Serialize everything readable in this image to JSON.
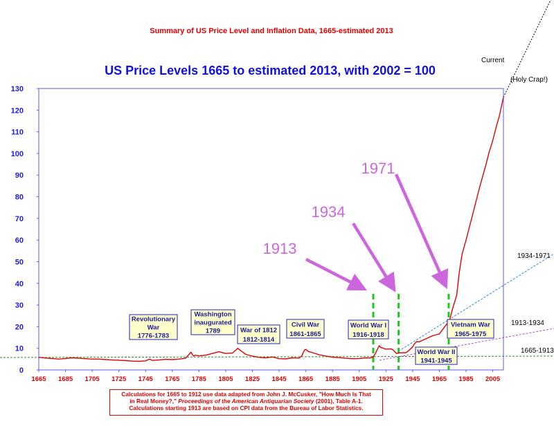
{
  "subtitle": "Summary of US Price Level and Inflation Data, 1665-estimated 2013",
  "credit": {
    "line1": "Calculations for 1665 to 1912 use data adapted from John J. McCusker, \"How Much Is That",
    "line2_pre": "in Real Money?,\" ",
    "line2_italic": "Proceedings of the American Antiquarian Society",
    "line2_post": " (2001), Table A-1.",
    "line3": "Calculations starting 1913 are based on CPI data from the Bureau of Labor Statistics."
  },
  "chart_data": {
    "type": "line",
    "title": "US Price Levels 1665 to estimated 2013, with 2002 = 100",
    "xlabel": "",
    "ylabel": "",
    "xlim": [
      1665,
      2013
    ],
    "ylim": [
      0,
      130
    ],
    "yticks": [
      "0",
      "10",
      "20",
      "30",
      "40",
      "50",
      "60",
      "70",
      "80",
      "90",
      "100",
      "110",
      "120",
      "130"
    ],
    "xticks": [
      "1665",
      "1685",
      "1705",
      "1725",
      "1745",
      "1765",
      "1785",
      "1805",
      "1825",
      "1845",
      "1865",
      "1885",
      "1905",
      "1925",
      "1945",
      "1965",
      "1985",
      "2005"
    ],
    "series": [
      {
        "name": "US Price Level",
        "color": "#e00000",
        "x": [
          1665,
          1670,
          1675,
          1680,
          1685,
          1690,
          1695,
          1700,
          1705,
          1710,
          1715,
          1720,
          1725,
          1730,
          1735,
          1740,
          1745,
          1748,
          1750,
          1755,
          1760,
          1765,
          1770,
          1775,
          1778,
          1779,
          1780,
          1781,
          1782,
          1785,
          1790,
          1795,
          1800,
          1805,
          1810,
          1812,
          1814,
          1816,
          1820,
          1825,
          1830,
          1835,
          1840,
          1845,
          1850,
          1855,
          1860,
          1862,
          1864,
          1865,
          1867,
          1870,
          1875,
          1880,
          1885,
          1890,
          1895,
          1900,
          1905,
          1910,
          1913,
          1915,
          1917,
          1918,
          1920,
          1921,
          1925,
          1929,
          1930,
          1933,
          1935,
          1940,
          1941,
          1943,
          1945,
          1946,
          1948,
          1950,
          1955,
          1960,
          1965,
          1970,
          1972,
          1973,
          1975,
          1978,
          1980,
          1982,
          1985,
          1990,
          1995,
          2000,
          2002,
          2005,
          2008,
          2010,
          2013
        ],
        "values": [
          5.8,
          5.5,
          5.3,
          5.0,
          5.3,
          5.6,
          5.4,
          5.2,
          5.0,
          5.0,
          4.8,
          4.6,
          4.5,
          4.3,
          4.1,
          4.0,
          4.2,
          5.0,
          4.4,
          4.6,
          4.9,
          4.8,
          5.0,
          5.4,
          7.5,
          8.2,
          7.2,
          6.4,
          6.8,
          6.5,
          6.8,
          7.6,
          8.4,
          7.6,
          7.8,
          8.8,
          10.0,
          9.0,
          7.2,
          6.4,
          5.8,
          5.6,
          6.0,
          5.2,
          5.1,
          5.6,
          5.5,
          6.5,
          9.2,
          9.5,
          8.5,
          8.0,
          7.0,
          6.4,
          5.9,
          5.7,
          5.4,
          5.2,
          5.3,
          5.6,
          5.5,
          5.8,
          7.4,
          8.8,
          11.2,
          10.4,
          9.6,
          9.7,
          9.4,
          7.6,
          7.9,
          8.0,
          8.4,
          9.5,
          10.6,
          11.8,
          13.1,
          13.0,
          14.4,
          15.8,
          16.6,
          20.8,
          22.2,
          23.8,
          28.5,
          34.5,
          45.5,
          53.4,
          60.0,
          72.0,
          84.0,
          95.0,
          100.0,
          106.0,
          113.3,
          117.4,
          126.0
        ]
      }
    ],
    "annotations": {
      "year_labels": [
        {
          "text": "1913",
          "year": 1913
        },
        {
          "text": "1934",
          "year": 1934
        },
        {
          "text": "1971",
          "year": 1971
        }
      ],
      "trend_lines": [
        {
          "label": "1665-1913"
        },
        {
          "label": "1913-1934"
        },
        {
          "label": "1934-1971"
        }
      ],
      "current_label": "Current",
      "holy_label": "(Holy Crap!)",
      "events": [
        {
          "id": "revolutionary",
          "lines": [
            "Revolutionary",
            "War",
            "1776-1783"
          ]
        },
        {
          "id": "washington",
          "lines": [
            "Washington",
            "inaugurated",
            "1789"
          ]
        },
        {
          "id": "war1812",
          "lines": [
            "War of 1812",
            "1812-1814"
          ]
        },
        {
          "id": "civilwar",
          "lines": [
            "Civil War",
            "1861-1865"
          ]
        },
        {
          "id": "ww1",
          "lines": [
            "World War I",
            "1916-1918"
          ]
        },
        {
          "id": "ww2",
          "lines": [
            "World War II",
            "1941-1945"
          ]
        },
        {
          "id": "vietnam",
          "lines": [
            "Vietnam War",
            "1965-1975"
          ]
        }
      ]
    }
  }
}
